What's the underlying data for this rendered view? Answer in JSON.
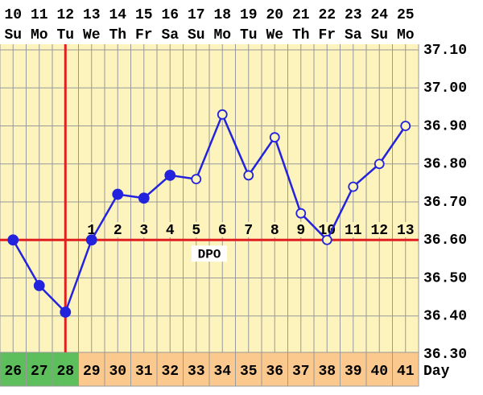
{
  "chart_data": {
    "type": "line",
    "categories": [
      "10",
      "11",
      "12",
      "13",
      "14",
      "15",
      "16",
      "17",
      "18",
      "19",
      "20",
      "21",
      "22",
      "23",
      "24",
      "25"
    ],
    "weekdays": [
      "Su",
      "Mo",
      "Tu",
      "We",
      "Th",
      "Fr",
      "Sa",
      "Su",
      "Mo",
      "Tu",
      "We",
      "Th",
      "Fr",
      "Sa",
      "Su",
      "Mo"
    ],
    "dpo": [
      null,
      null,
      null,
      "1",
      "2",
      "3",
      "4",
      "5",
      "6",
      "7",
      "8",
      "9",
      "10",
      "11",
      "12",
      "13"
    ],
    "cycle_days": [
      "26",
      "27",
      "28",
      "29",
      "30",
      "31",
      "32",
      "33",
      "34",
      "35",
      "36",
      "37",
      "38",
      "39",
      "40",
      "41"
    ],
    "cycle_day_label": "Day",
    "series": [
      {
        "color": "#2323dd",
        "values": [
          36.6,
          36.48,
          36.41,
          36.6,
          36.72,
          36.71,
          36.77,
          36.76,
          36.93,
          36.77,
          36.87,
          36.67,
          36.6,
          36.74,
          36.8,
          36.9
        ],
        "hollow": [
          false,
          false,
          false,
          false,
          false,
          false,
          false,
          true,
          true,
          true,
          true,
          true,
          true,
          true,
          true,
          true
        ]
      }
    ],
    "coverline": 36.6,
    "coverline_label": "DPO",
    "ovulation_cycle_day": "28",
    "ylim": [
      36.3,
      37.1
    ],
    "yticks": [
      {
        "value": 36.3,
        "label": "36.30"
      },
      {
        "value": 36.4,
        "label": "36.40"
      },
      {
        "value": 36.5,
        "label": "36.50"
      },
      {
        "value": 36.6,
        "label": "36.60"
      },
      {
        "value": 36.7,
        "label": "36.70"
      },
      {
        "value": 36.8,
        "label": "36.80"
      },
      {
        "value": 36.9,
        "label": "36.90"
      },
      {
        "value": 37.0,
        "label": "37.00"
      },
      {
        "value": 37.1,
        "label": "37.10"
      }
    ],
    "grid": true
  }
}
